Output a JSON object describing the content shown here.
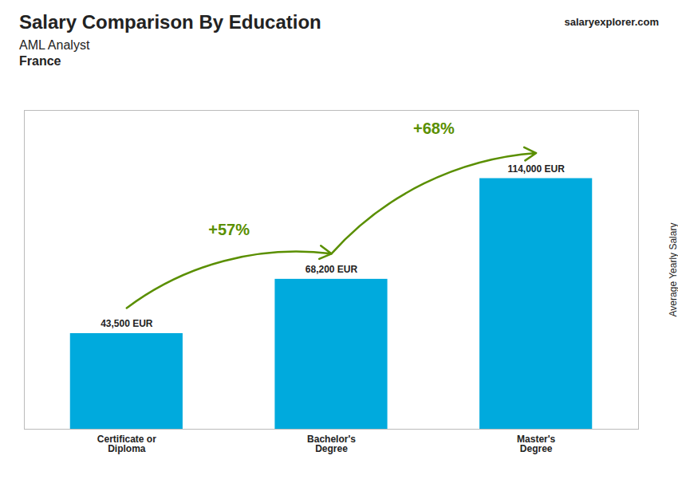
{
  "chart_data": {
    "type": "bar",
    "title": "Salary Comparison By Education",
    "subtitle": [
      "AML Analyst",
      "France"
    ],
    "credit": "salaryexplorer.com",
    "y_label": "Average Yearly Salary",
    "categories": [
      "Certificate or\nDiploma",
      "Bachelor's\nDegree",
      "Master's\nDegree"
    ],
    "values": [
      43500,
      68200,
      114000
    ],
    "value_labels": [
      "43,500 EUR",
      "68,200 EUR",
      "114,000 EUR"
    ],
    "data_labels": true,
    "annotations": [
      "+57%",
      "+68%"
    ],
    "color": "#00aadd",
    "ylim": [
      0,
      145000
    ],
    "yticks": [],
    "tick_labels": "x",
    "grid": false
  }
}
